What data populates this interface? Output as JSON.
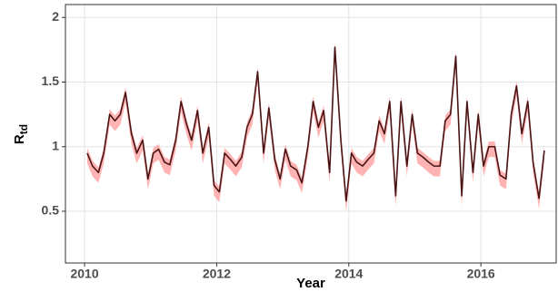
{
  "chart_data": {
    "type": "line",
    "x_label": "Year",
    "y_label": "R",
    "y_label_sub": "td",
    "xlim": [
      2009.71,
      2017.14
    ],
    "xticks": [
      2010,
      2012,
      2014,
      2016
    ],
    "ylim": [
      0.1,
      2.1
    ],
    "yticks": [
      0.5,
      1.0,
      1.5,
      2.0
    ],
    "grid": true,
    "color": "#4a1414",
    "x": [
      2010.04,
      2010.12,
      2010.21,
      2010.29,
      2010.38,
      2010.46,
      2010.54,
      2010.62,
      2010.71,
      2010.79,
      2010.88,
      2010.96,
      2011.04,
      2011.12,
      2011.21,
      2011.29,
      2011.38,
      2011.46,
      2011.54,
      2011.62,
      2011.71,
      2011.79,
      2011.88,
      2011.96,
      2012.04,
      2012.12,
      2012.21,
      2012.29,
      2012.38,
      2012.46,
      2012.54,
      2012.62,
      2012.71,
      2012.79,
      2012.88,
      2012.96,
      2013.04,
      2013.12,
      2013.21,
      2013.29,
      2013.38,
      2013.46,
      2013.54,
      2013.62,
      2013.71,
      2013.79,
      2013.88,
      2013.96,
      2014.04,
      2014.12,
      2014.21,
      2014.29,
      2014.38,
      2014.46,
      2014.54,
      2014.62,
      2014.71,
      2014.79,
      2014.88,
      2014.96,
      2015.04,
      2015.12,
      2015.21,
      2015.29,
      2015.38,
      2015.46,
      2015.54,
      2015.62,
      2015.71,
      2015.79,
      2015.88,
      2015.96,
      2016.04,
      2016.12,
      2016.21,
      2016.29,
      2016.38,
      2016.46,
      2016.54,
      2016.62,
      2016.71,
      2016.79,
      2016.88,
      2016.96
    ],
    "values": [
      0.95,
      0.85,
      0.8,
      0.95,
      1.25,
      1.2,
      1.25,
      1.42,
      1.1,
      0.95,
      1.05,
      0.75,
      0.95,
      0.98,
      0.88,
      0.86,
      1.05,
      1.35,
      1.18,
      1.05,
      1.28,
      0.95,
      1.15,
      0.7,
      0.65,
      0.95,
      0.9,
      0.85,
      0.92,
      1.15,
      1.25,
      1.58,
      0.95,
      1.3,
      0.9,
      0.75,
      0.98,
      0.85,
      0.82,
      0.72,
      1.0,
      1.35,
      1.15,
      1.28,
      0.8,
      1.77,
      1.05,
      0.58,
      0.95,
      0.88,
      0.85,
      0.9,
      0.95,
      1.2,
      1.1,
      1.35,
      0.62,
      1.35,
      0.85,
      1.25,
      0.95,
      0.92,
      0.88,
      0.85,
      0.85,
      1.2,
      1.25,
      1.7,
      0.62,
      1.35,
      0.8,
      1.25,
      0.85,
      1.0,
      1.0,
      0.78,
      0.75,
      1.25,
      1.47,
      1.1,
      1.35,
      0.88,
      0.6,
      0.97
    ],
    "band": {
      "color": "#ffb3b3",
      "lower": [
        0.87,
        0.77,
        0.72,
        0.87,
        1.17,
        1.12,
        1.17,
        1.34,
        1.02,
        0.87,
        0.97,
        0.67,
        0.87,
        0.9,
        0.8,
        0.78,
        0.97,
        1.27,
        1.1,
        0.97,
        1.2,
        0.87,
        1.07,
        0.62,
        0.57,
        0.87,
        0.82,
        0.77,
        0.84,
        1.07,
        1.17,
        1.5,
        0.87,
        1.22,
        0.82,
        0.67,
        0.9,
        0.77,
        0.74,
        0.64,
        0.92,
        1.27,
        1.07,
        1.2,
        0.72,
        1.69,
        0.97,
        0.5,
        0.87,
        0.8,
        0.77,
        0.82,
        0.87,
        1.12,
        1.02,
        1.27,
        0.54,
        1.27,
        0.77,
        1.17,
        0.87,
        0.84,
        0.8,
        0.77,
        0.77,
        1.12,
        1.17,
        1.62,
        0.54,
        1.27,
        0.72,
        1.17,
        0.77,
        0.92,
        0.92,
        0.7,
        0.67,
        1.17,
        1.39,
        1.02,
        1.27,
        0.8,
        0.52,
        0.89
      ],
      "upper": [
        0.99,
        0.89,
        0.84,
        0.99,
        1.29,
        1.24,
        1.29,
        1.46,
        1.14,
        0.99,
        1.09,
        0.79,
        0.99,
        1.02,
        0.92,
        0.9,
        1.09,
        1.39,
        1.22,
        1.09,
        1.32,
        0.99,
        1.19,
        0.74,
        0.69,
        0.99,
        0.94,
        0.89,
        0.96,
        1.19,
        1.29,
        1.62,
        0.99,
        1.34,
        0.94,
        0.79,
        1.02,
        0.89,
        0.86,
        0.76,
        1.04,
        1.39,
        1.19,
        1.32,
        0.84,
        1.81,
        1.09,
        0.62,
        0.99,
        0.92,
        0.89,
        0.94,
        0.99,
        1.24,
        1.14,
        1.39,
        0.66,
        1.39,
        0.89,
        1.29,
        0.99,
        0.96,
        0.92,
        0.89,
        0.89,
        1.24,
        1.29,
        1.74,
        0.66,
        1.39,
        0.84,
        1.29,
        0.89,
        1.04,
        1.04,
        0.82,
        0.79,
        1.29,
        1.51,
        1.14,
        1.39,
        0.92,
        0.64,
        1.01
      ]
    }
  }
}
